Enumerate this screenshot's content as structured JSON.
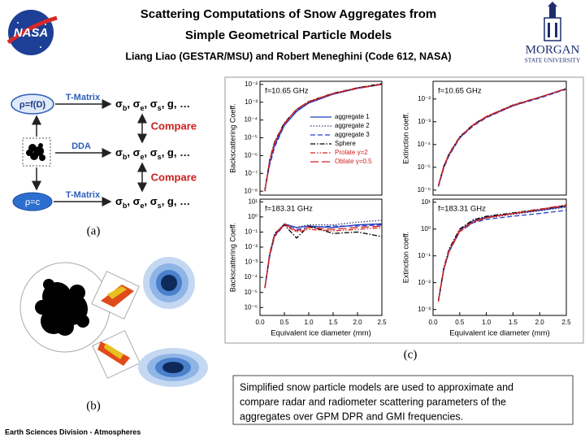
{
  "header": {
    "title_line1": "Scattering Computations of Snow Aggregates from",
    "title_line2": "Simple Geometrical Particle Models",
    "authors": "Liang Liao (GESTAR/MSU) and Robert Meneghini (Code 612, NASA)",
    "left_logo": "NASA",
    "right_logo_line1": "MORGAN",
    "right_logo_line2": "STATE UNIVERSITY"
  },
  "diagram": {
    "panel_label": "(a)",
    "density_nodes": [
      "ρ=f(D)",
      "ρ=c"
    ],
    "methods": [
      "T-Matrix",
      "DDA",
      "T-Matrix"
    ],
    "outputs": [
      [
        "σ",
        "b",
        ", σ",
        "e",
        ", σ",
        "s",
        ", g, …"
      ],
      [
        "σ",
        "b",
        ", σ",
        "e",
        ", σ",
        "s",
        ", g, …"
      ],
      [
        "σ",
        "b",
        ", σ",
        "e",
        ", σ",
        "s",
        ", g, …"
      ]
    ],
    "compare_labels": [
      "Compare",
      "Compare"
    ]
  },
  "images": {
    "panel_label": "(b)"
  },
  "charts_panel_label": "(c)",
  "caption": {
    "lines": [
      "Simplified  snow particle models are used to approximate and",
      "compare radar and radiometer scattering parameters of the",
      "aggregates over GPM DPR and GMI frequencies."
    ]
  },
  "footer": "Earth Sciences Division - Atmospheres",
  "chart_data": [
    {
      "type": "line",
      "annotation": "f=10.65 GHz",
      "ylabel": "Backscattering Coeff.",
      "log_y": true,
      "legend": "center right",
      "x": [
        0.1,
        0.2,
        0.3,
        0.5,
        0.75,
        1,
        1.5,
        2,
        2.5
      ],
      "xlim": [
        0,
        2.5
      ],
      "ylim": [
        6e-09,
        0.015
      ],
      "yticks": [
        {
          "value": 1e-08,
          "label": "10⁻⁸"
        },
        {
          "value": 1e-07,
          "label": "10⁻⁷"
        },
        {
          "value": 1e-06,
          "label": "10⁻⁶"
        },
        {
          "value": 1e-05,
          "label": "10⁻⁵"
        },
        {
          "value": 0.0001,
          "label": "10⁻⁴"
        },
        {
          "value": 0.001,
          "label": "10⁻³"
        },
        {
          "value": 0.01,
          "label": "10⁻²"
        }
      ],
      "series": [
        {
          "name": "aggregate 1",
          "color": "#1f3fbf",
          "line_style": "solid",
          "values": [
            1.2e-08,
            4e-07,
            4e-06,
            5e-05,
            0.0003,
            0.0009,
            0.0028,
            0.006,
            0.01
          ]
        },
        {
          "name": "aggregate 2",
          "color": "#333366",
          "line_style": "dotted",
          "values": [
            1e-08,
            5e-07,
            5e-06,
            6e-05,
            0.00035,
            0.001,
            0.003,
            0.0065,
            0.011
          ]
        },
        {
          "name": "aggregate 3",
          "color": "#2a3fd0",
          "line_style": "dashed",
          "values": [
            1.3e-08,
            3e-07,
            3e-06,
            5e-05,
            0.00032,
            0.001,
            0.003,
            0.006,
            0.01
          ]
        },
        {
          "name": "Sphere",
          "color": "#000000",
          "line_style": "dashdot",
          "values": [
            1e-08,
            6e-07,
            6e-06,
            7e-05,
            0.0004,
            0.0011,
            0.0032,
            0.0065,
            0.011
          ]
        },
        {
          "name": "Prolate γ=2",
          "color": "#d42020",
          "line_style": "dashdotdot",
          "values": [
            1e-08,
            5e-07,
            5e-06,
            6e-05,
            0.00038,
            0.001,
            0.003,
            0.006,
            0.01
          ]
        },
        {
          "name": "Oblate γ=0.5",
          "color": "#d42020",
          "line_style": "longdash",
          "values": [
            1.1e-08,
            5e-07,
            5.5e-06,
            6.5e-05,
            0.0004,
            0.0011,
            0.0031,
            0.0062,
            0.01
          ]
        }
      ]
    },
    {
      "type": "line",
      "annotation": "f=10.65 GHz",
      "ylabel": "Extinction coeff.",
      "log_y": true,
      "x": [
        0.1,
        0.2,
        0.3,
        0.5,
        0.75,
        1,
        1.5,
        2,
        2.5
      ],
      "xlim": [
        0,
        2.5
      ],
      "ylim": [
        6e-07,
        0.06
      ],
      "yticks": [
        {
          "value": 1e-06,
          "label": "10⁻⁶"
        },
        {
          "value": 1e-05,
          "label": "10⁻⁵"
        },
        {
          "value": 0.0001,
          "label": "10⁻⁴"
        },
        {
          "value": 0.001,
          "label": "10⁻³"
        },
        {
          "value": 0.01,
          "label": "10⁻²"
        }
      ],
      "series": [
        {
          "color": "#1f3fbf",
          "line_style": "solid",
          "values": [
            1.5e-06,
            1e-05,
            3.5e-05,
            0.0002,
            0.0007,
            0.0016,
            0.005,
            0.012,
            0.028
          ]
        },
        {
          "color": "#333366",
          "line_style": "dotted",
          "values": [
            1.5e-06,
            1e-05,
            3.5e-05,
            0.00021,
            0.0007,
            0.0017,
            0.0052,
            0.012,
            0.029
          ]
        },
        {
          "color": "#2a3fd0",
          "line_style": "dashed",
          "values": [
            1.4e-06,
            9e-06,
            3.2e-05,
            0.00019,
            0.00065,
            0.0015,
            0.005,
            0.011,
            0.027
          ]
        },
        {
          "color": "#000000",
          "line_style": "dashdot",
          "values": [
            1.6e-06,
            1.1e-05,
            4e-05,
            0.00022,
            0.00075,
            0.0017,
            0.0055,
            0.012,
            0.028
          ]
        },
        {
          "color": "#d42020",
          "line_style": "dashdotdot",
          "values": [
            1.5e-06,
            1e-05,
            3.8e-05,
            0.00021,
            0.0007,
            0.0016,
            0.0052,
            0.012,
            0.028
          ]
        },
        {
          "color": "#d42020",
          "line_style": "longdash",
          "values": [
            1.6e-06,
            1.1e-05,
            3.8e-05,
            0.00021,
            0.00072,
            0.0017,
            0.0053,
            0.012,
            0.029
          ]
        }
      ]
    },
    {
      "type": "line",
      "annotation": "f=183.31 GHz",
      "ylabel": "Backscattering Coeff.",
      "xlabel": "Equivalent ice diameter (mm)",
      "log_y": true,
      "x": [
        0.1,
        0.2,
        0.3,
        0.5,
        0.75,
        1,
        1.5,
        2,
        2.5
      ],
      "xlim": [
        0,
        2.5
      ],
      "ylim": [
        3e-07,
        15
      ],
      "xticks": [
        {
          "value": 0,
          "label": "0.0"
        },
        0.5,
        {
          "value": 1,
          "label": "1.0"
        },
        1.5,
        {
          "value": 2,
          "label": "2.0"
        },
        2.5
      ],
      "yticks": [
        {
          "value": 1e-06,
          "label": "10⁻⁶"
        },
        {
          "value": 1e-05,
          "label": "10⁻⁵"
        },
        {
          "value": 0.0001,
          "label": "10⁻⁴"
        },
        {
          "value": 0.001,
          "label": "10⁻³"
        },
        {
          "value": 0.01,
          "label": "10⁻²"
        },
        {
          "value": 0.1,
          "label": "10⁻¹"
        },
        {
          "value": 1,
          "label": "10⁰"
        },
        {
          "value": 10,
          "label": "10¹"
        }
      ],
      "series": [
        {
          "color": "#1f3fbf",
          "line_style": "solid",
          "values": [
            2e-05,
            0.003,
            0.06,
            0.35,
            0.2,
            0.25,
            0.2,
            0.3,
            0.35
          ]
        },
        {
          "color": "#333366",
          "line_style": "dotted",
          "values": [
            2e-05,
            0.003,
            0.06,
            0.3,
            0.2,
            0.3,
            0.3,
            0.45,
            0.6
          ]
        },
        {
          "color": "#2a3fd0",
          "line_style": "dashed",
          "values": [
            2e-05,
            0.0025,
            0.05,
            0.3,
            0.15,
            0.2,
            0.25,
            0.25,
            0.3
          ]
        },
        {
          "color": "#000000",
          "line_style": "dashdot",
          "values": [
            2e-05,
            0.004,
            0.08,
            0.3,
            0.04,
            0.25,
            0.08,
            0.1,
            0.05
          ]
        },
        {
          "color": "#d42020",
          "line_style": "dashdotdot",
          "values": [
            2e-05,
            0.003,
            0.06,
            0.3,
            0.1,
            0.15,
            0.12,
            0.15,
            0.2
          ]
        },
        {
          "color": "#d42020",
          "line_style": "longdash",
          "values": [
            2e-05,
            0.0035,
            0.07,
            0.35,
            0.12,
            0.2,
            0.15,
            0.2,
            0.25
          ]
        }
      ]
    },
    {
      "type": "line",
      "annotation": "f=183.31 GHz",
      "ylabel": "Extinction coeff.",
      "xlabel": "Equivalent ice diameter (mm)",
      "log_y": true,
      "x": [
        0.1,
        0.2,
        0.3,
        0.5,
        0.75,
        1,
        1.5,
        2,
        2.5
      ],
      "xlim": [
        0,
        2.5
      ],
      "ylim": [
        0.0006,
        13
      ],
      "xticks": [
        {
          "value": 0,
          "label": "0.0"
        },
        0.5,
        {
          "value": 1,
          "label": "1.0"
        },
        1.5,
        {
          "value": 2,
          "label": "2.0"
        },
        2.5
      ],
      "yticks": [
        {
          "value": 0.001,
          "label": "10⁻³"
        },
        {
          "value": 0.01,
          "label": "10⁻²"
        },
        {
          "value": 0.1,
          "label": "10⁻¹"
        },
        {
          "value": 1,
          "label": "10⁰"
        },
        {
          "value": 10,
          "label": "10¹"
        }
      ],
      "series": [
        {
          "color": "#1f3fbf",
          "line_style": "solid",
          "values": [
            0.002,
            0.03,
            0.15,
            0.9,
            2,
            2.8,
            3.8,
            5,
            7
          ]
        },
        {
          "color": "#333366",
          "line_style": "dotted",
          "values": [
            0.002,
            0.03,
            0.15,
            0.8,
            1.8,
            2.6,
            3.5,
            4.8,
            6.5
          ]
        },
        {
          "color": "#2a3fd0",
          "line_style": "dashed",
          "values": [
            0.002,
            0.03,
            0.14,
            0.8,
            1.7,
            2.3,
            3,
            3.8,
            5
          ]
        },
        {
          "color": "#000000",
          "line_style": "dashdot",
          "values": [
            0.0022,
            0.035,
            0.18,
            1,
            2.2,
            3,
            4,
            5.5,
            7.5
          ]
        },
        {
          "color": "#d42020",
          "line_style": "dashdotdot",
          "values": [
            0.002,
            0.03,
            0.15,
            0.8,
            1.8,
            2.6,
            3.8,
            5.5,
            8
          ]
        },
        {
          "color": "#d42020",
          "line_style": "longdash",
          "values": [
            0.0021,
            0.032,
            0.16,
            0.9,
            1.9,
            2.7,
            3.8,
            5.3,
            7.5
          ]
        }
      ]
    }
  ]
}
